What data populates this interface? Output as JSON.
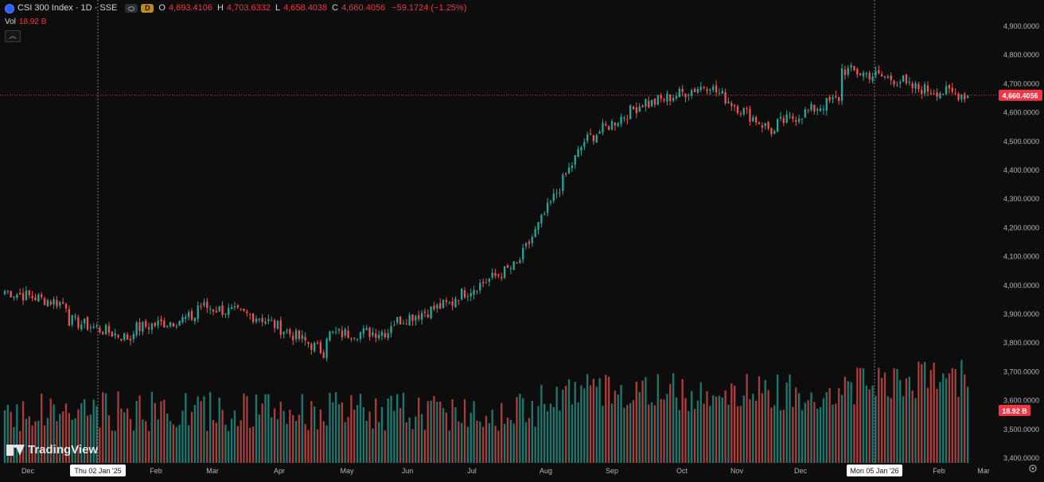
{
  "legend": {
    "symbol_title": "CSI 300 Index · 1D · SSE",
    "open_key": "O",
    "open": "4,693.4106",
    "high_key": "H",
    "high": "4,703.6332",
    "low_key": "L",
    "low": "4,658.4038",
    "close_key": "C",
    "close": "4,660.4056",
    "change": "−59.1724 (−1.25%)",
    "eye_icon": "eye-icon",
    "data_badge": "D"
  },
  "volume_legend": {
    "label": "Vol",
    "value": "18.92 B",
    "collapse_icon": "chevron-up-icon"
  },
  "brand": {
    "name": "TradingView",
    "logo_icon": "tradingview-logo-icon"
  },
  "settings_icon": "gear-icon",
  "price_tag": "4,660.4056",
  "volume_tag": "18.92 B",
  "crosshair_labels": [
    "Thu 02 Jan '25",
    "Mon 05 Jan '26"
  ],
  "colors": {
    "up": "#26a69a",
    "down": "#ef5350",
    "background": "#0d0d0d",
    "price_line": "#f23645",
    "text": "#d1d4dc"
  },
  "chart_data": {
    "type": "candlestick",
    "title": "CSI 300 Index · 1D · SSE",
    "x_tick_labels": [
      "Dec",
      "Thu 02 Jan '25",
      "Feb",
      "Mar",
      "Apr",
      "May",
      "Jun",
      "Jul",
      "Aug",
      "Sep",
      "Oct",
      "Nov",
      "Dec",
      "Mon 05 Jan '26",
      "Feb",
      "Mar"
    ],
    "y_tick_labels": [
      "4,900.0000",
      "4,800.0000",
      "4,700.0000",
      "4,600.0000",
      "4,500.0000",
      "4,400.0000",
      "4,300.0000",
      "4,200.0000",
      "4,100.0000",
      "4,000.0000",
      "3,900.0000",
      "3,800.0000",
      "3,700.0000",
      "3,600.0000",
      "3,500.0000",
      "3,400.0000"
    ],
    "ylim": [
      3400,
      4900
    ],
    "grid": false,
    "last_price": 4660.4056,
    "last_volume": "18.92 B",
    "approx_close_path": [
      {
        "month": "Dec 2024",
        "start": 3980,
        "end": 3935
      },
      {
        "month": "Jan 2025",
        "start": 3880,
        "end": 3815
      },
      {
        "month": "Feb 2025",
        "start": 3850,
        "end": 3890
      },
      {
        "month": "Mar 2025",
        "start": 3930,
        "end": 3890
      },
      {
        "month": "Apr 2025",
        "start": 3885,
        "end": 3770
      },
      {
        "month": "May 2025",
        "start": 3830,
        "end": 3840
      },
      {
        "month": "Jun 2025",
        "start": 3870,
        "end": 3940
      },
      {
        "month": "Jul 2025",
        "start": 3960,
        "end": 4070
      },
      {
        "month": "Aug 2025",
        "start": 4090,
        "end": 4480
      },
      {
        "month": "Sep 2025",
        "start": 4500,
        "end": 4640
      },
      {
        "month": "Oct 2025",
        "start": 4630,
        "end": 4700
      },
      {
        "month": "Nov 2025",
        "start": 4680,
        "end": 4530
      },
      {
        "month": "Dec 2025",
        "start": 4560,
        "end": 4650
      },
      {
        "month": "Jan 2026",
        "start": 4750,
        "end": 4710
      },
      {
        "month": "Feb 2026",
        "start": 4690,
        "end": 4660
      }
    ]
  }
}
